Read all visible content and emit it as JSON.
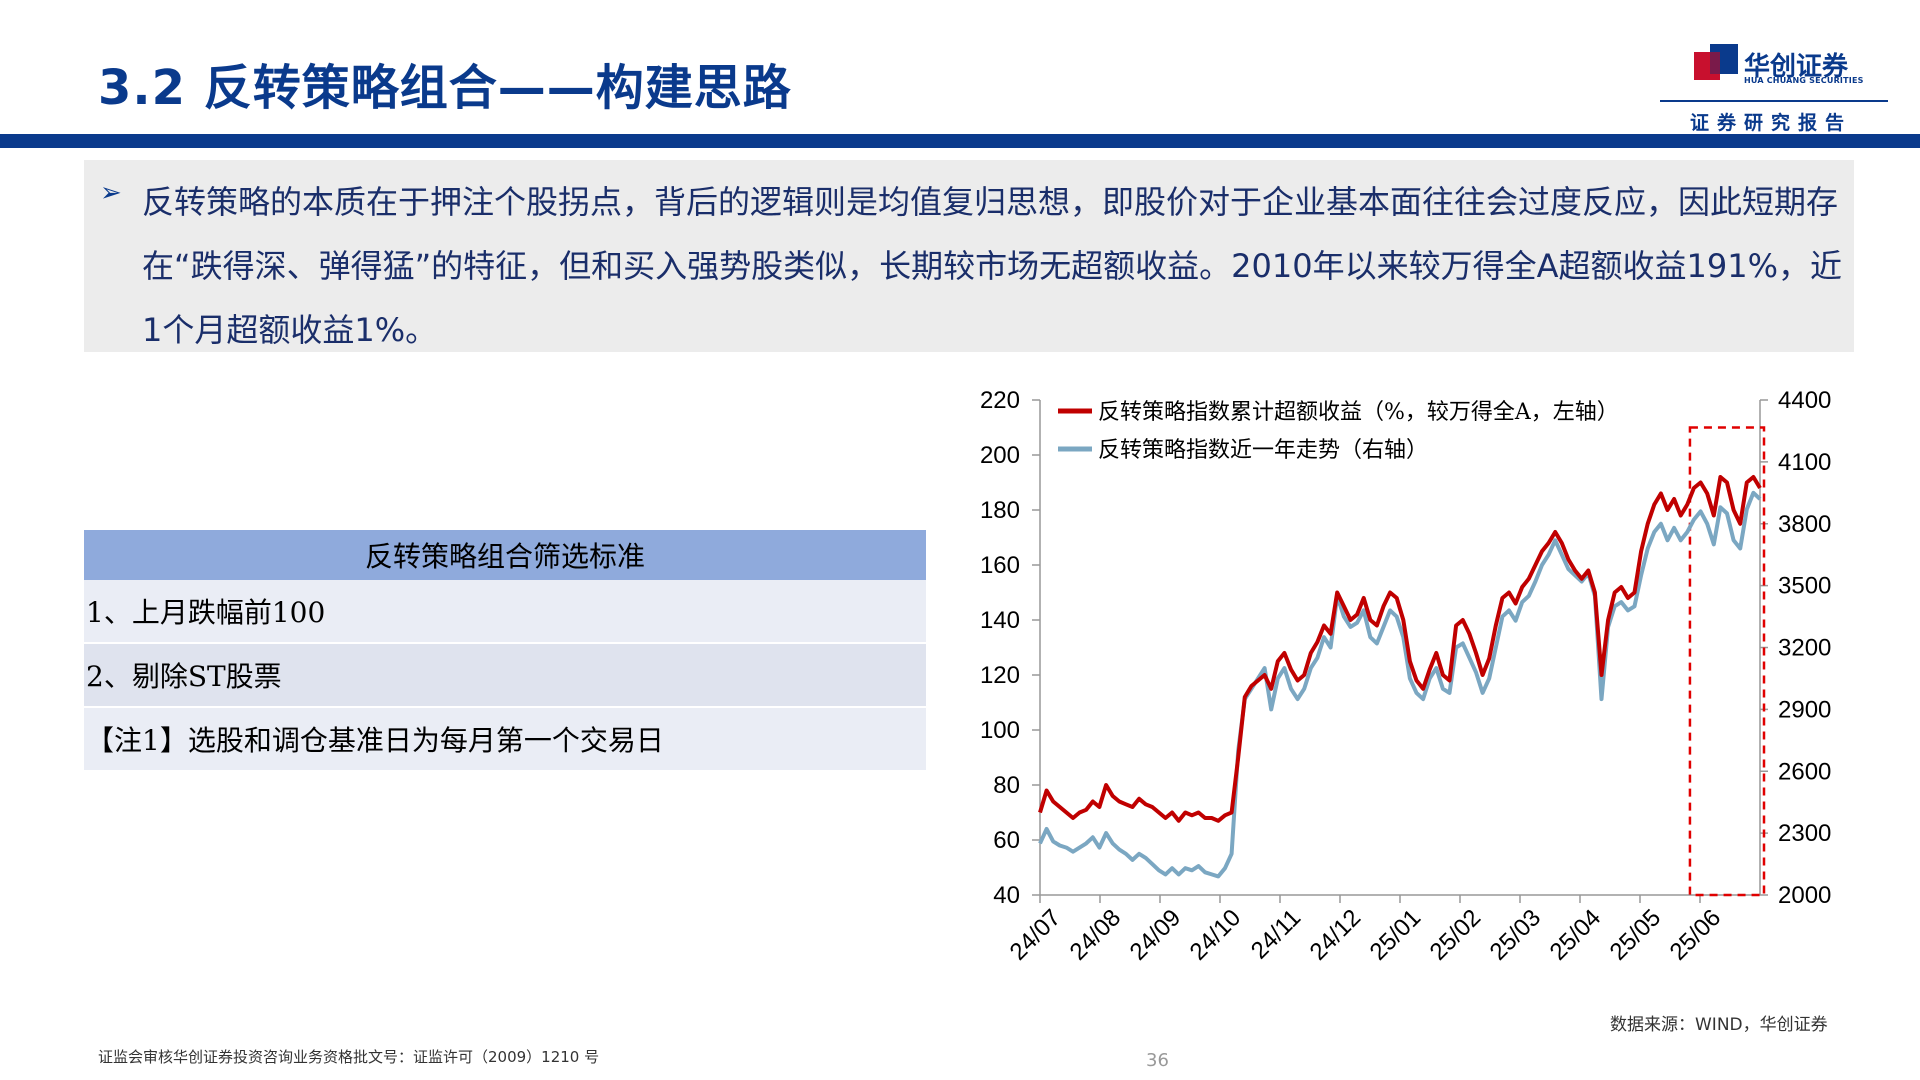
{
  "header": {
    "title": "3.2 反转策略组合——构建思路",
    "logo_name": "华创证券",
    "logo_sub": "HUA CHUANG SECURITIES",
    "tagline": "证券研究报告"
  },
  "bullet": {
    "text": "反转策略的本质在于押注个股拐点，背后的逻辑则是均值复归思想，即股价对于企业基本面往往会过度反应，因此短期存在“跌得深、弹得猛”的特征，但和买入强势股类似，长期较市场无超额收益。2010年以来较万得全A超额收益191%，近1个月超额收益1%。"
  },
  "table": {
    "header": "反转策略组合筛选标准",
    "rows": [
      "1、上月跌幅前100",
      "2、剔除ST股票",
      "【注1】选股和调仓基准日为每月第一个交易日"
    ]
  },
  "chart_data": {
    "type": "line",
    "x_labels": [
      "24/07",
      "24/08",
      "24/09",
      "24/10",
      "24/11",
      "24/12",
      "25/01",
      "25/02",
      "25/03",
      "25/04",
      "25/05",
      "25/06"
    ],
    "left_ticks": [
      40,
      60,
      80,
      100,
      120,
      140,
      160,
      180,
      200,
      220
    ],
    "right_ticks": [
      2000,
      2300,
      2600,
      2900,
      3200,
      3500,
      3800,
      4100,
      4400
    ],
    "ylim_left": [
      40,
      220
    ],
    "ylim_right": [
      2000,
      4400
    ],
    "series": [
      {
        "name": "反转策略指数累计超额收益（%，较万得全A，左轴）",
        "axis": "left",
        "color": "#c00000",
        "values": [
          70,
          78,
          74,
          72,
          70,
          68,
          70,
          71,
          74,
          72,
          80,
          76,
          74,
          73,
          72,
          75,
          73,
          72,
          70,
          68,
          70,
          67,
          70,
          69,
          70,
          68,
          68,
          67,
          69,
          70,
          90,
          112,
          116,
          118,
          120,
          115,
          125,
          128,
          122,
          118,
          120,
          128,
          132,
          138,
          135,
          150,
          145,
          140,
          142,
          148,
          140,
          138,
          145,
          150,
          148,
          140,
          125,
          118,
          115,
          122,
          128,
          120,
          118,
          138,
          140,
          135,
          128,
          120,
          126,
          138,
          148,
          150,
          146,
          152,
          155,
          160,
          165,
          168,
          172,
          168,
          162,
          158,
          155,
          158,
          150,
          120,
          140,
          150,
          152,
          148,
          150,
          165,
          175,
          182,
          186,
          180,
          184,
          178,
          182,
          188,
          190,
          186,
          178,
          192,
          190,
          180,
          175,
          190,
          192,
          188
        ]
      },
      {
        "name": "反转策略指数近一年走势（右轴）",
        "axis": "right",
        "color": "#7ba7c2",
        "values": [
          2250,
          2320,
          2260,
          2240,
          2230,
          2210,
          2230,
          2250,
          2280,
          2230,
          2300,
          2250,
          2220,
          2200,
          2170,
          2200,
          2180,
          2150,
          2120,
          2100,
          2130,
          2100,
          2130,
          2120,
          2140,
          2110,
          2100,
          2090,
          2130,
          2200,
          2700,
          2950,
          3000,
          3050,
          3100,
          2900,
          3050,
          3100,
          3000,
          2950,
          3000,
          3100,
          3150,
          3250,
          3200,
          3450,
          3350,
          3300,
          3320,
          3380,
          3250,
          3220,
          3300,
          3380,
          3350,
          3250,
          3050,
          2980,
          2950,
          3050,
          3100,
          3000,
          2980,
          3200,
          3220,
          3150,
          3080,
          2980,
          3050,
          3200,
          3350,
          3380,
          3330,
          3420,
          3450,
          3520,
          3600,
          3650,
          3720,
          3650,
          3580,
          3550,
          3520,
          3560,
          3450,
          2950,
          3300,
          3400,
          3420,
          3380,
          3400,
          3550,
          3680,
          3760,
          3800,
          3720,
          3780,
          3720,
          3760,
          3820,
          3860,
          3800,
          3700,
          3880,
          3850,
          3720,
          3680,
          3870,
          3950,
          3920
        ]
      }
    ],
    "highlight_label": "",
    "highlight_range": [
      99,
      109
    ]
  },
  "footer": {
    "source": "数据来源：WIND，华创证券",
    "license": "证监会审核华创证券投资咨询业务资格批文号：证监许可（2009）1210 号",
    "page": "36"
  }
}
